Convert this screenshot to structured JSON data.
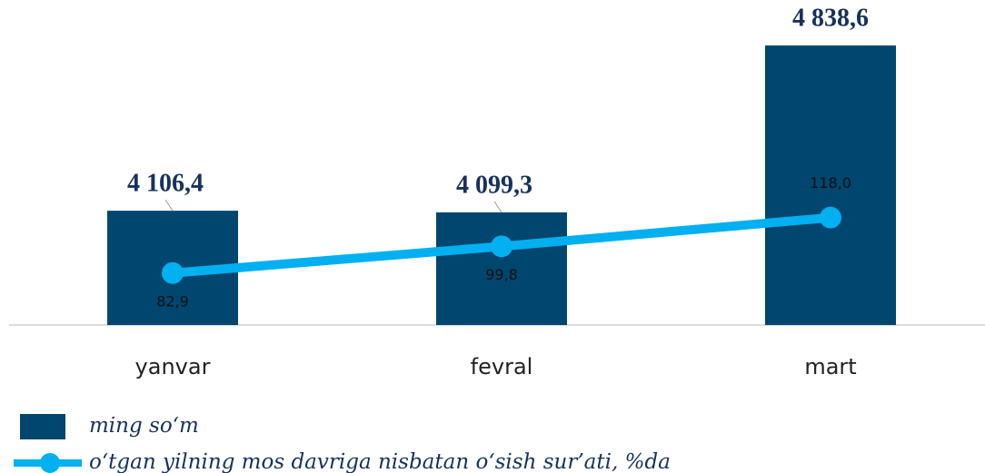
{
  "chart_data": {
    "type": "bar",
    "categories": [
      "yanvar",
      "fevral",
      "mart"
    ],
    "ylim": [
      3600,
      5000
    ],
    "y2lim": [
      50,
      250
    ],
    "series": [
      {
        "name": "ming so‘m",
        "type": "bar",
        "color": "#00466e",
        "values": [
          4106.4,
          4099.3,
          4838.6
        ],
        "value_labels": [
          "4 106,4",
          "4 099,3",
          "4 838,6"
        ]
      },
      {
        "name": "o‘tgan yilning mos davriga nisbatan o‘sish sur’ati, %da",
        "type": "line",
        "axis": "y2",
        "color": "#00b0f0",
        "values": [
          82.9,
          99.8,
          118.0
        ],
        "value_labels": [
          "82,9",
          "99,8",
          "118,0"
        ]
      }
    ]
  }
}
